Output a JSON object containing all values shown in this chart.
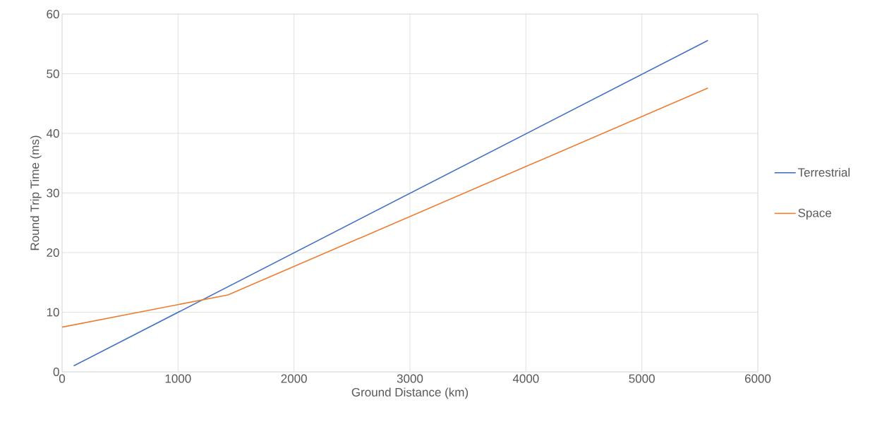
{
  "chart_data": {
    "type": "line",
    "xlabel": "Ground Distance (km)",
    "ylabel": "Round Trip Time (ms)",
    "xlim": [
      0,
      6000
    ],
    "ylim": [
      0,
      60
    ],
    "xticks": [
      0,
      1000,
      2000,
      3000,
      4000,
      5000,
      6000
    ],
    "yticks": [
      0,
      10,
      20,
      30,
      40,
      50,
      60
    ],
    "grid": true,
    "legend": "right",
    "line_style": "solid",
    "series": [
      {
        "name": "Terrestrial",
        "color": "#4472c4",
        "x": [
          100,
          5570
        ],
        "values": [
          1,
          55.6
        ]
      },
      {
        "name": "Space",
        "color": "#ed7d31",
        "x": [
          0,
          1430,
          5570
        ],
        "values": [
          7.5,
          12.9,
          47.6
        ]
      }
    ]
  }
}
